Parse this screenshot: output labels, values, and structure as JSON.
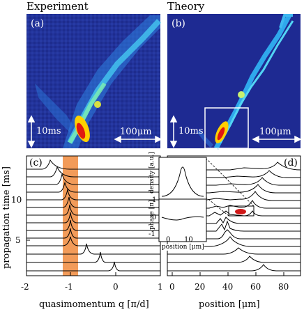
{
  "titles": {
    "experiment": "Experiment",
    "theory": "Theory"
  },
  "panels": {
    "a": "(a)",
    "b": "(b)",
    "c": "(c)",
    "d": "(d)"
  },
  "scale_bars": {
    "time": "10ms",
    "space": "100μm"
  },
  "panel_c": {
    "ylabel": "propagation time [ms]",
    "xlabel": "quasimomentum q [π/d]",
    "xticks": [
      "-2",
      "-1",
      "0",
      "1"
    ],
    "yticks": [
      "5",
      "10"
    ],
    "highlight_color": "#f08a3c"
  },
  "panel_d": {
    "xlabel": "position [μm]",
    "xticks": [
      "0",
      "20",
      "40",
      "60",
      "80"
    ]
  },
  "inset": {
    "ylabel_top": "density [a.u.]",
    "ylabel_bottom": "phase [π]",
    "xlabel": "position [μm]",
    "xticks": [
      "0",
      "10"
    ],
    "yticks_bottom": [
      "1",
      "0",
      "-1"
    ]
  },
  "colors": {
    "map_bg": "#1a2a8c",
    "map_hot": "#c01818",
    "peak_red": "#d01818"
  }
}
